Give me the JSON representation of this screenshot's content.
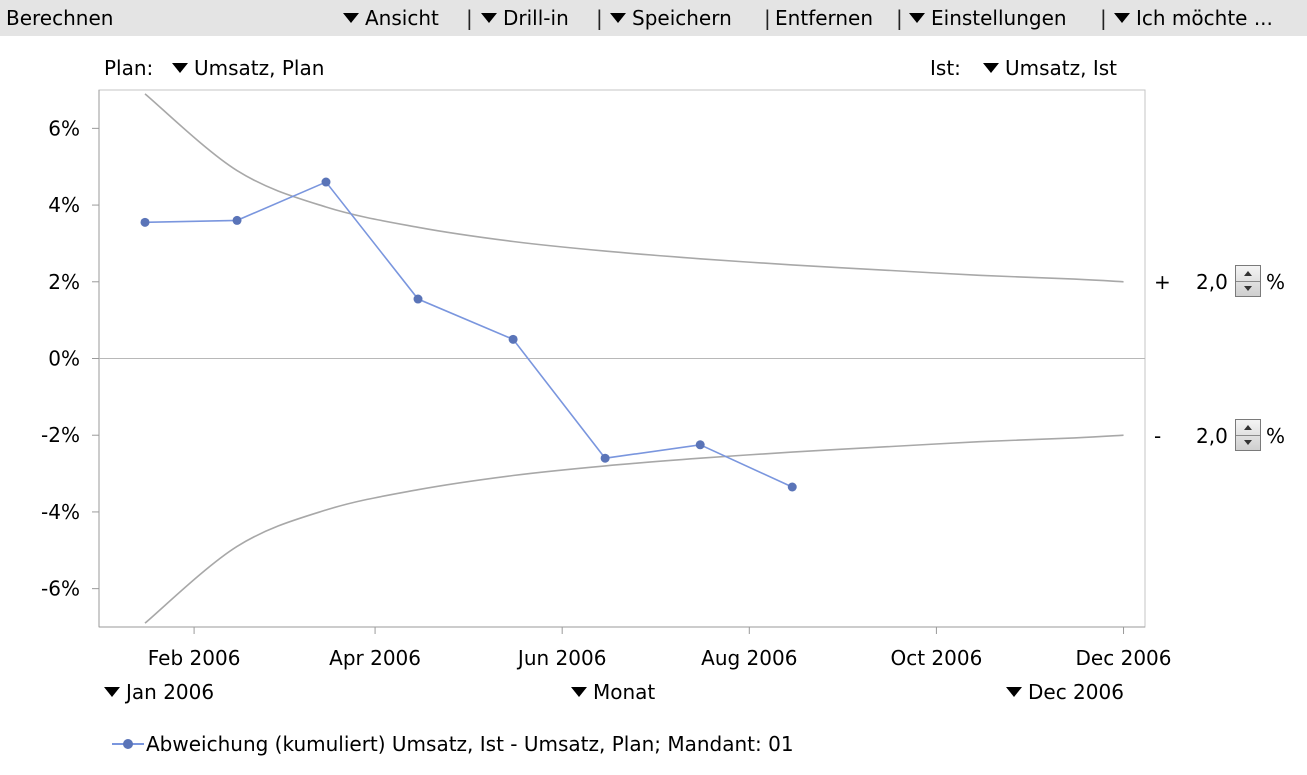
{
  "toolbar": {
    "title": "Berechnen",
    "menus": [
      "Ansicht",
      "Drill-in",
      "Speichern",
      "Entfernen",
      "Einstellungen",
      "Ich möchte ..."
    ],
    "separator": "|"
  },
  "selectors": {
    "plan_label": "Plan:",
    "plan_value": "Umsatz, Plan",
    "ist_label": "Ist:",
    "ist_value": "Umsatz, Ist",
    "start_value": "Jan 2006",
    "period_value": "Monat",
    "end_value": "Dec 2006"
  },
  "tolerance": {
    "upper_sign": "+",
    "upper_value": "2,0",
    "lower_sign": "-",
    "lower_value": "2,0",
    "unit": "%"
  },
  "colors": {
    "series": "#7a96de",
    "marker": "#5a74b8",
    "band": "#a8a8a8",
    "axis": "#9a9a9a",
    "toolbar_bg": "#e4e4e4"
  },
  "chart_data": {
    "type": "line",
    "title": "",
    "xlabel": "",
    "ylabel": "",
    "x_ticks": [
      "Feb 2006",
      "Apr 2006",
      "Jun 2006",
      "Aug 2006",
      "Oct 2006",
      "Dec 2006"
    ],
    "y_ticks": [
      "6%",
      "4%",
      "2%",
      "0%",
      "-2%",
      "-4%",
      "-6%"
    ],
    "xlim": [
      "2006-01-01",
      "2006-12-08"
    ],
    "ylim": [
      -7.0,
      7.0
    ],
    "zero_line": true,
    "grid": false,
    "legend": "bottom",
    "series": [
      {
        "name": "Abweichung (kumuliert) Umsatz, Ist - Umsatz, Plan; Mandant: 01",
        "x": [
          "2006-01-16",
          "2006-02-15",
          "2006-03-16",
          "2006-04-15",
          "2006-05-16",
          "2006-06-15",
          "2006-07-16",
          "2006-08-15"
        ],
        "y": [
          3.55,
          3.6,
          4.6,
          1.55,
          0.5,
          -2.6,
          -2.25,
          -3.35
        ]
      }
    ],
    "bands": {
      "x": [
        "2006-01-16",
        "2006-02-15",
        "2006-03-16",
        "2006-04-15",
        "2006-05-16",
        "2006-06-15",
        "2006-07-16",
        "2006-08-15",
        "2006-09-15",
        "2006-10-15",
        "2006-11-15",
        "2006-12-01"
      ],
      "upper": [
        6.9,
        4.9,
        3.95,
        3.42,
        3.05,
        2.8,
        2.6,
        2.44,
        2.3,
        2.17,
        2.07,
        2.0
      ],
      "lower": [
        -6.9,
        -4.9,
        -3.95,
        -3.42,
        -3.05,
        -2.8,
        -2.6,
        -2.44,
        -2.3,
        -2.17,
        -2.07,
        -2.0
      ]
    }
  }
}
